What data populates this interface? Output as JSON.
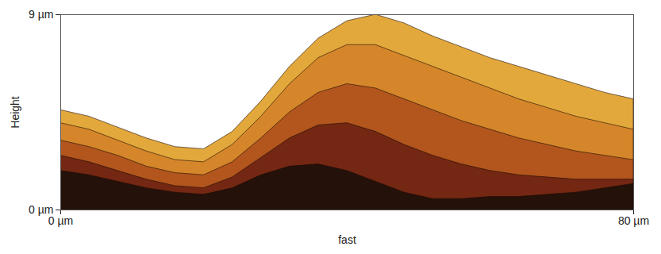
{
  "chart_data": {
    "type": "area",
    "x_label": "fast",
    "y_label": "Height",
    "x": [
      0,
      4,
      8,
      12,
      16,
      20,
      24,
      28,
      32,
      36,
      40,
      44,
      48,
      52,
      56,
      60,
      64,
      68,
      72,
      76,
      80
    ],
    "series": [
      {
        "color": "#e3a83c",
        "values": [
          4.6,
          4.3,
          3.8,
          3.3,
          2.9,
          2.8,
          3.6,
          5.0,
          6.6,
          7.9,
          8.7,
          9.0,
          8.6,
          8.0,
          7.5,
          7.0,
          6.6,
          6.2,
          5.8,
          5.4,
          5.1
        ]
      },
      {
        "color": "#d5862a",
        "values": [
          4.0,
          3.7,
          3.2,
          2.7,
          2.3,
          2.2,
          3.0,
          4.3,
          5.8,
          7.0,
          7.6,
          7.6,
          7.1,
          6.6,
          6.1,
          5.6,
          5.1,
          4.7,
          4.3,
          4.0,
          3.7
        ]
      },
      {
        "color": "#b2561e",
        "values": [
          3.2,
          2.9,
          2.5,
          2.0,
          1.7,
          1.6,
          2.2,
          3.3,
          4.5,
          5.4,
          5.8,
          5.6,
          5.1,
          4.6,
          4.1,
          3.7,
          3.3,
          3.0,
          2.7,
          2.5,
          2.3
        ]
      },
      {
        "color": "#742712",
        "values": [
          2.5,
          2.2,
          1.8,
          1.4,
          1.1,
          1.0,
          1.5,
          2.4,
          3.3,
          3.9,
          4.0,
          3.6,
          3.0,
          2.5,
          2.1,
          1.8,
          1.6,
          1.5,
          1.4,
          1.4,
          1.4
        ]
      },
      {
        "color": "#24110a",
        "values": [
          1.8,
          1.6,
          1.3,
          1.0,
          0.8,
          0.7,
          1.0,
          1.6,
          2.0,
          2.1,
          1.8,
          1.3,
          0.8,
          0.5,
          0.5,
          0.6,
          0.6,
          0.7,
          0.8,
          1.0,
          1.2
        ]
      }
    ],
    "xlim": [
      0,
      80
    ],
    "xticks": [
      {
        "value": 0,
        "label": "0 µm"
      },
      {
        "value": 80,
        "label": "80 µm"
      }
    ],
    "ylim": [
      0,
      9
    ],
    "yticks": [
      {
        "value": 0,
        "label": "0 µm"
      },
      {
        "value": 9,
        "label": "9 µm"
      }
    ],
    "grid": false
  }
}
